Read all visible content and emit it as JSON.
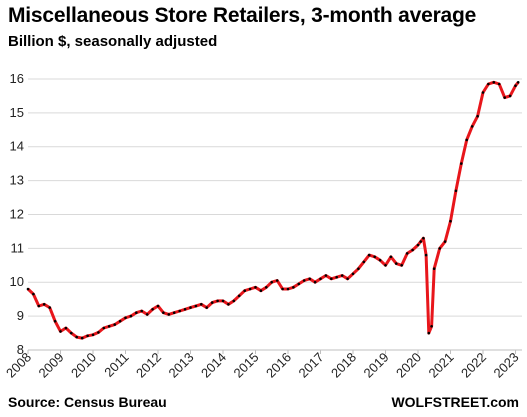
{
  "chart_data": {
    "type": "line",
    "title": "Miscellaneous  Store Retailers, 3-month average",
    "subtitle": "Billion $, seasonally adjusted",
    "xlabel": "",
    "ylabel": "",
    "ylim": [
      8,
      16.5
    ],
    "y_ticks": [
      8,
      9,
      10,
      11,
      12,
      13,
      14,
      15,
      16
    ],
    "x_ticks": [
      "2008",
      "2009",
      "2010",
      "2011",
      "2012",
      "2013",
      "2014",
      "2015",
      "2016",
      "2017",
      "2018",
      "2019",
      "2020",
      "2021",
      "2022",
      "2023"
    ],
    "grid": true,
    "line_color": "#e8161b",
    "marker_color": "#000000",
    "series": [
      {
        "name": "",
        "x": [
          2008.0,
          2008.167,
          2008.333,
          2008.5,
          2008.667,
          2008.833,
          2009.0,
          2009.167,
          2009.333,
          2009.5,
          2009.667,
          2009.833,
          2010.0,
          2010.167,
          2010.333,
          2010.5,
          2010.667,
          2010.833,
          2011.0,
          2011.167,
          2011.333,
          2011.5,
          2011.667,
          2011.833,
          2012.0,
          2012.167,
          2012.333,
          2012.5,
          2012.667,
          2012.833,
          2013.0,
          2013.167,
          2013.333,
          2013.5,
          2013.667,
          2013.833,
          2014.0,
          2014.167,
          2014.333,
          2014.5,
          2014.667,
          2014.833,
          2015.0,
          2015.167,
          2015.333,
          2015.5,
          2015.667,
          2015.833,
          2016.0,
          2016.167,
          2016.333,
          2016.5,
          2016.667,
          2016.833,
          2017.0,
          2017.167,
          2017.333,
          2017.5,
          2017.667,
          2017.833,
          2018.0,
          2018.167,
          2018.333,
          2018.5,
          2018.667,
          2018.833,
          2019.0,
          2019.167,
          2019.333,
          2019.5,
          2019.667,
          2019.833,
          2020.0,
          2020.083,
          2020.167,
          2020.25,
          2020.333,
          2020.417,
          2020.5,
          2020.667,
          2020.833,
          2021.0,
          2021.167,
          2021.333,
          2021.5,
          2021.667,
          2021.833,
          2022.0,
          2022.167,
          2022.333,
          2022.5,
          2022.667,
          2022.833,
          2023.0,
          2023.083
        ],
        "values": [
          9.8,
          9.65,
          9.3,
          9.35,
          9.25,
          8.85,
          8.55,
          8.65,
          8.5,
          8.38,
          8.35,
          8.42,
          8.45,
          8.52,
          8.65,
          8.7,
          8.75,
          8.85,
          8.95,
          9.0,
          9.1,
          9.15,
          9.05,
          9.2,
          9.3,
          9.1,
          9.05,
          9.1,
          9.15,
          9.2,
          9.25,
          9.3,
          9.35,
          9.25,
          9.4,
          9.45,
          9.45,
          9.35,
          9.45,
          9.6,
          9.75,
          9.8,
          9.85,
          9.75,
          9.85,
          10.0,
          10.05,
          9.8,
          9.8,
          9.85,
          9.95,
          10.05,
          10.1,
          10.0,
          10.1,
          10.2,
          10.1,
          10.15,
          10.2,
          10.1,
          10.25,
          10.4,
          10.6,
          10.8,
          10.75,
          10.65,
          10.5,
          10.75,
          10.55,
          10.5,
          10.85,
          10.95,
          11.1,
          11.2,
          11.3,
          10.8,
          8.5,
          8.7,
          10.4,
          11.0,
          11.2,
          11.8,
          12.7,
          13.5,
          14.2,
          14.6,
          14.9,
          15.6,
          15.85,
          15.9,
          15.85,
          15.45,
          15.5,
          15.8,
          15.9
        ]
      }
    ]
  },
  "footer": {
    "source": "Source: Census Bureau",
    "brand": "WOLFSTREET.com"
  }
}
